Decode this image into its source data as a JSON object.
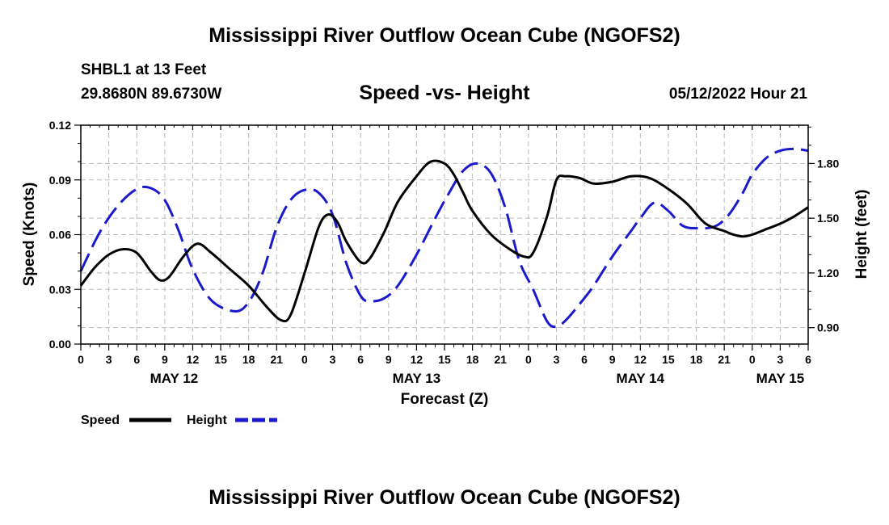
{
  "header": {
    "title": "Mississippi River Outflow Ocean Cube (NGOFS2)",
    "station": "SHBL1 at 13 Feet",
    "coords": "29.8680N  89.6730W",
    "subtitle": "Speed -vs- Height",
    "datetime": "05/12/2022 Hour 21"
  },
  "footer": {
    "title": "Mississippi River Outflow Ocean Cube (NGOFS2)"
  },
  "colors": {
    "speed": "#000000",
    "height": "#1a1acc",
    "grid": "#bbbbbb"
  },
  "chart_data": {
    "type": "line",
    "title": "Speed -vs- Height",
    "xlabel": "Forecast (Z)",
    "ylabel_left": "Speed (Knots)",
    "ylabel_right": "Height (feet)",
    "x_unit": "forecast hour from 00Z May 12",
    "xlim": [
      0,
      78
    ],
    "ylim_left": [
      0,
      0.12
    ],
    "ylim_right": [
      0.81,
      2.01
    ],
    "x_ticks": [
      0,
      3,
      6,
      9,
      12,
      15,
      18,
      21,
      24,
      27,
      30,
      33,
      36,
      39,
      42,
      45,
      48,
      51,
      54,
      57,
      60,
      63,
      66,
      69,
      72,
      75,
      78
    ],
    "x_tick_labels": [
      "0",
      "3",
      "6",
      "9",
      "12",
      "15",
      "18",
      "21",
      "0",
      "3",
      "6",
      "9",
      "12",
      "15",
      "18",
      "21",
      "0",
      "3",
      "6",
      "9",
      "12",
      "15",
      "18",
      "21",
      "0",
      "3",
      "6"
    ],
    "y_left_ticks": [
      "0.00",
      "0.03",
      "0.06",
      "0.09",
      "0.12"
    ],
    "y_left_tick_values": [
      0,
      0.03,
      0.06,
      0.09,
      0.12
    ],
    "y_right_ticks": [
      "0.90",
      "1.20",
      "1.50",
      "1.80"
    ],
    "y_right_tick_values": [
      0.9,
      1.2,
      1.5,
      1.8
    ],
    "date_labels": [
      {
        "label": "MAY 12",
        "x": 10
      },
      {
        "label": "MAY 13",
        "x": 36
      },
      {
        "label": "MAY 14",
        "x": 60
      },
      {
        "label": "MAY 15",
        "x": 75
      }
    ],
    "grid": true,
    "series": [
      {
        "name": "Speed",
        "axis": "left",
        "style": "solid",
        "x": [
          0,
          1.5,
          3,
          4.5,
          6,
          7.5,
          8.5,
          9.5,
          11,
          12.5,
          14,
          16,
          18,
          20,
          21.5,
          22.5,
          24,
          25.5,
          26.5,
          27.5,
          28.5,
          30,
          31,
          32.5,
          34,
          36,
          37.5,
          39,
          40,
          41,
          42,
          44,
          46,
          47.5,
          48.5,
          50,
          51,
          52,
          53.5,
          55,
          57,
          59,
          61,
          63,
          65,
          67,
          69,
          70,
          71,
          72,
          73.5,
          75,
          76.5,
          78
        ],
        "values": [
          0.032,
          0.042,
          0.049,
          0.052,
          0.05,
          0.04,
          0.035,
          0.037,
          0.048,
          0.055,
          0.05,
          0.041,
          0.032,
          0.02,
          0.013,
          0.016,
          0.039,
          0.064,
          0.071,
          0.067,
          0.056,
          0.045,
          0.047,
          0.061,
          0.078,
          0.092,
          0.1,
          0.099,
          0.093,
          0.083,
          0.073,
          0.06,
          0.052,
          0.048,
          0.05,
          0.07,
          0.09,
          0.092,
          0.091,
          0.088,
          0.089,
          0.092,
          0.091,
          0.085,
          0.077,
          0.066,
          0.062,
          0.06,
          0.059,
          0.06,
          0.063,
          0.066,
          0.07,
          0.075
        ]
      },
      {
        "name": "Height",
        "axis": "right",
        "style": "dashed",
        "x": [
          0,
          2,
          4,
          6,
          7.5,
          9,
          10.5,
          12,
          14,
          16.5,
          18,
          19.5,
          21,
          22.5,
          24,
          25.5,
          27,
          28.5,
          30,
          31,
          32.5,
          34,
          36,
          38,
          39.5,
          41,
          42.5,
          44,
          45.5,
          47,
          48.5,
          50,
          51,
          52,
          53.5,
          55,
          57,
          59,
          60,
          61.5,
          63,
          64.5,
          66,
          68,
          69.5,
          71,
          72,
          73.5,
          75,
          76.5,
          78
        ],
        "values": [
          1.21,
          1.42,
          1.57,
          1.66,
          1.665,
          1.6,
          1.43,
          1.22,
          1.05,
          0.99,
          1.04,
          1.2,
          1.45,
          1.6,
          1.655,
          1.64,
          1.52,
          1.25,
          1.075,
          1.045,
          1.06,
          1.13,
          1.3,
          1.5,
          1.64,
          1.76,
          1.8,
          1.745,
          1.56,
          1.27,
          1.11,
          0.935,
          0.905,
          0.94,
          1.03,
          1.13,
          1.29,
          1.43,
          1.5,
          1.585,
          1.54,
          1.46,
          1.445,
          1.455,
          1.52,
          1.64,
          1.74,
          1.83,
          1.87,
          1.88,
          1.87
        ]
      }
    ],
    "legend": {
      "placement": "bottom-left",
      "entries": [
        {
          "label": "Speed",
          "style": "solid"
        },
        {
          "label": "Height",
          "style": "dashed"
        }
      ]
    }
  }
}
